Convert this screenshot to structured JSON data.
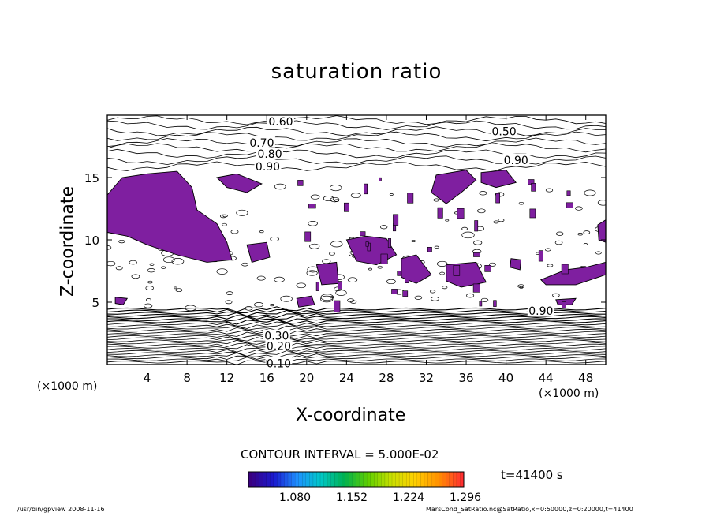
{
  "chart_data": {
    "type": "contour",
    "title": "saturation ratio",
    "xlabel": "X-coordinate",
    "ylabel": "Z-coordinate",
    "x_unit_left": "(×1000 m)",
    "x_unit_right": "(×1000 m)",
    "xlim": [
      0,
      50
    ],
    "ylim": [
      0,
      20
    ],
    "x_ticks": [
      4,
      8,
      12,
      16,
      20,
      24,
      28,
      32,
      36,
      40,
      44,
      48
    ],
    "y_ticks": [
      5,
      10,
      15
    ],
    "contour_interval_text": "CONTOUR INTERVAL = 5.000E-02",
    "contour_labels": [
      {
        "text": "0.60",
        "x": 17.4,
        "z": 19.5
      },
      {
        "text": "0.50",
        "x": 39.8,
        "z": 18.7
      },
      {
        "text": "0.70",
        "x": 15.5,
        "z": 17.8
      },
      {
        "text": "0.80",
        "x": 16.3,
        "z": 16.9
      },
      {
        "text": "0.90",
        "x": 16.1,
        "z": 15.9
      },
      {
        "text": "0.90",
        "x": 41.0,
        "z": 16.4
      },
      {
        "text": "0.20",
        "x": 17.2,
        "z": 1.5
      },
      {
        "text": "0.10",
        "x": 17.2,
        "z": 0.1
      },
      {
        "text": "0.30",
        "x": 17.0,
        "z": 2.3
      },
      {
        "text": "0.90",
        "x": 43.5,
        "z": 4.3
      }
    ],
    "supersaturated_fill_color": "#7f1fa0",
    "colorbar": {
      "ticks": [
        "1.080",
        "1.152",
        "1.224",
        "1.296"
      ],
      "colors": [
        "#3a0080",
        "#1a1ad0",
        "#1e90ff",
        "#00c8c8",
        "#00b050",
        "#60d000",
        "#c8e000",
        "#ffd000",
        "#ff9000",
        "#ff3030"
      ]
    },
    "time_label": "t=41400 s"
  },
  "footer": {
    "left": "/usr/bin/gpview  2008-11-16",
    "right": "MarsCond_SatRatio.nc@SatRatio,x=0:50000,z=0:20000,t=41400"
  }
}
